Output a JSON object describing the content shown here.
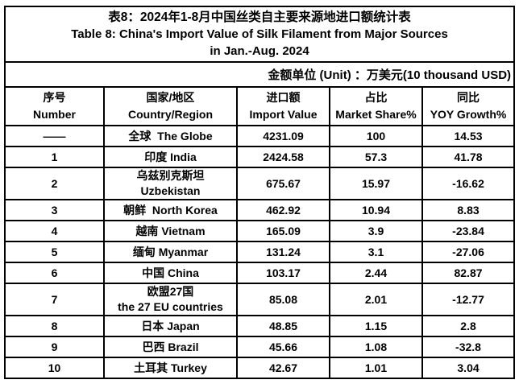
{
  "table": {
    "title": {
      "line1": "表8：2024年1-8月中国丝类自主要来源地进口额统计表",
      "line2": "Table 8: China's Import Value of Silk Filament from Major Sources",
      "line3": "in Jan.-Aug. 2024"
    },
    "unit_note": "金额单位 (Unit) ：万美元(10 thousand USD)",
    "columns": [
      {
        "zh": "序号",
        "en": "Number"
      },
      {
        "zh": "国家/地区",
        "en": "Country/Region"
      },
      {
        "zh": "进口额",
        "en": "Import Value"
      },
      {
        "zh": "占比",
        "en": "Market Share%"
      },
      {
        "zh": "同比",
        "en": "YOY Growth%"
      }
    ],
    "rows": [
      {
        "number": "——",
        "country": "全球  The Globe",
        "import_value": "4231.09",
        "market_share": "100",
        "yoy_growth": "14.53"
      },
      {
        "number": "1",
        "country": "印度 India",
        "import_value": "2424.58",
        "market_share": "57.3",
        "yoy_growth": "41.78"
      },
      {
        "number": "2",
        "country": "乌兹别克斯坦\nUzbekistan",
        "import_value": "675.67",
        "market_share": "15.97",
        "yoy_growth": "-16.62"
      },
      {
        "number": "3",
        "country": "朝鲜  North Korea",
        "import_value": "462.92",
        "market_share": "10.94",
        "yoy_growth": "8.83"
      },
      {
        "number": "4",
        "country": "越南 Vietnam",
        "import_value": "165.09",
        "market_share": "3.9",
        "yoy_growth": "-23.84"
      },
      {
        "number": "5",
        "country": "缅甸 Myanmar",
        "import_value": "131.24",
        "market_share": "3.1",
        "yoy_growth": "-27.06"
      },
      {
        "number": "6",
        "country": "中国 China",
        "import_value": "103.17",
        "market_share": "2.44",
        "yoy_growth": "82.87"
      },
      {
        "number": "7",
        "country": "欧盟27国\nthe 27 EU countries",
        "import_value": "85.08",
        "market_share": "2.01",
        "yoy_growth": "-12.77"
      },
      {
        "number": "8",
        "country": "日本 Japan",
        "import_value": "48.85",
        "market_share": "1.15",
        "yoy_growth": "2.8"
      },
      {
        "number": "9",
        "country": "巴西 Brazil",
        "import_value": "45.66",
        "market_share": "1.08",
        "yoy_growth": "-32.8"
      },
      {
        "number": "10",
        "country": "土耳其 Turkey",
        "import_value": "42.67",
        "market_share": "1.01",
        "yoy_growth": "3.04"
      }
    ],
    "colors": {
      "border": "#000000",
      "text": "#000000",
      "background": "#ffffff"
    }
  }
}
